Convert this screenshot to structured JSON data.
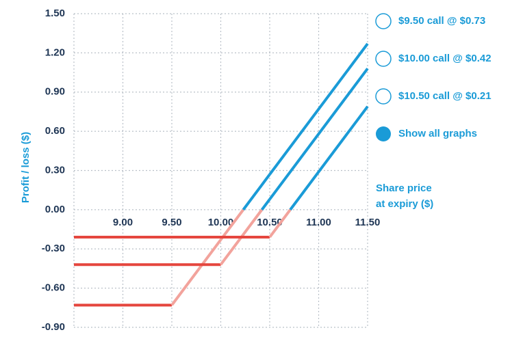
{
  "chart_data": {
    "type": "line",
    "ylabel": "Profit / loss ($)",
    "xlabel": [
      "Share price",
      "at expiry ($)"
    ],
    "x": [
      8.5,
      9.5,
      10.0,
      10.5,
      11.5
    ],
    "series": [
      {
        "name": "$9.50 call @ $0.73",
        "color": "#1a9bd7",
        "values": [
          -0.73,
          -0.73,
          -0.23,
          0.27,
          1.27
        ]
      },
      {
        "name": "$10.00 call @ $0.42",
        "color": "#1a9bd7",
        "values": [
          -0.42,
          -0.42,
          -0.42,
          0.08,
          1.08
        ]
      },
      {
        "name": "$10.50 call @ $0.21",
        "color": "#1a9bd7",
        "values": [
          -0.21,
          -0.21,
          -0.21,
          -0.21,
          0.79
        ]
      }
    ],
    "loss_color": "#e5463e",
    "rising_loss_color": "#f2a39c",
    "show_all_label": "Show all graphs",
    "xlim": [
      8.5,
      11.5
    ],
    "ylim": [
      -0.9,
      1.5
    ],
    "xticks": [
      {
        "value": 9.0,
        "label": "9.00"
      },
      {
        "value": 9.5,
        "label": "9.50"
      },
      {
        "value": 10.0,
        "label": "10.00"
      },
      {
        "value": 10.5,
        "label": "10.50"
      },
      {
        "value": 11.0,
        "label": "11.00"
      },
      {
        "value": 11.5,
        "label": "11.50"
      }
    ],
    "yticks": [
      {
        "value": -0.9,
        "label": "-0.90"
      },
      {
        "value": -0.6,
        "label": "-0.60"
      },
      {
        "value": -0.3,
        "label": "-0.30"
      },
      {
        "value": 0,
        "label": "0.00"
      },
      {
        "value": 0.3,
        "label": "0.30"
      },
      {
        "value": 0.6,
        "label": "0.60"
      },
      {
        "value": 0.9,
        "label": "0.90"
      },
      {
        "value": 1.2,
        "label": "1.20"
      },
      {
        "value": 1.5,
        "label": "1.50"
      }
    ],
    "grid": true
  }
}
